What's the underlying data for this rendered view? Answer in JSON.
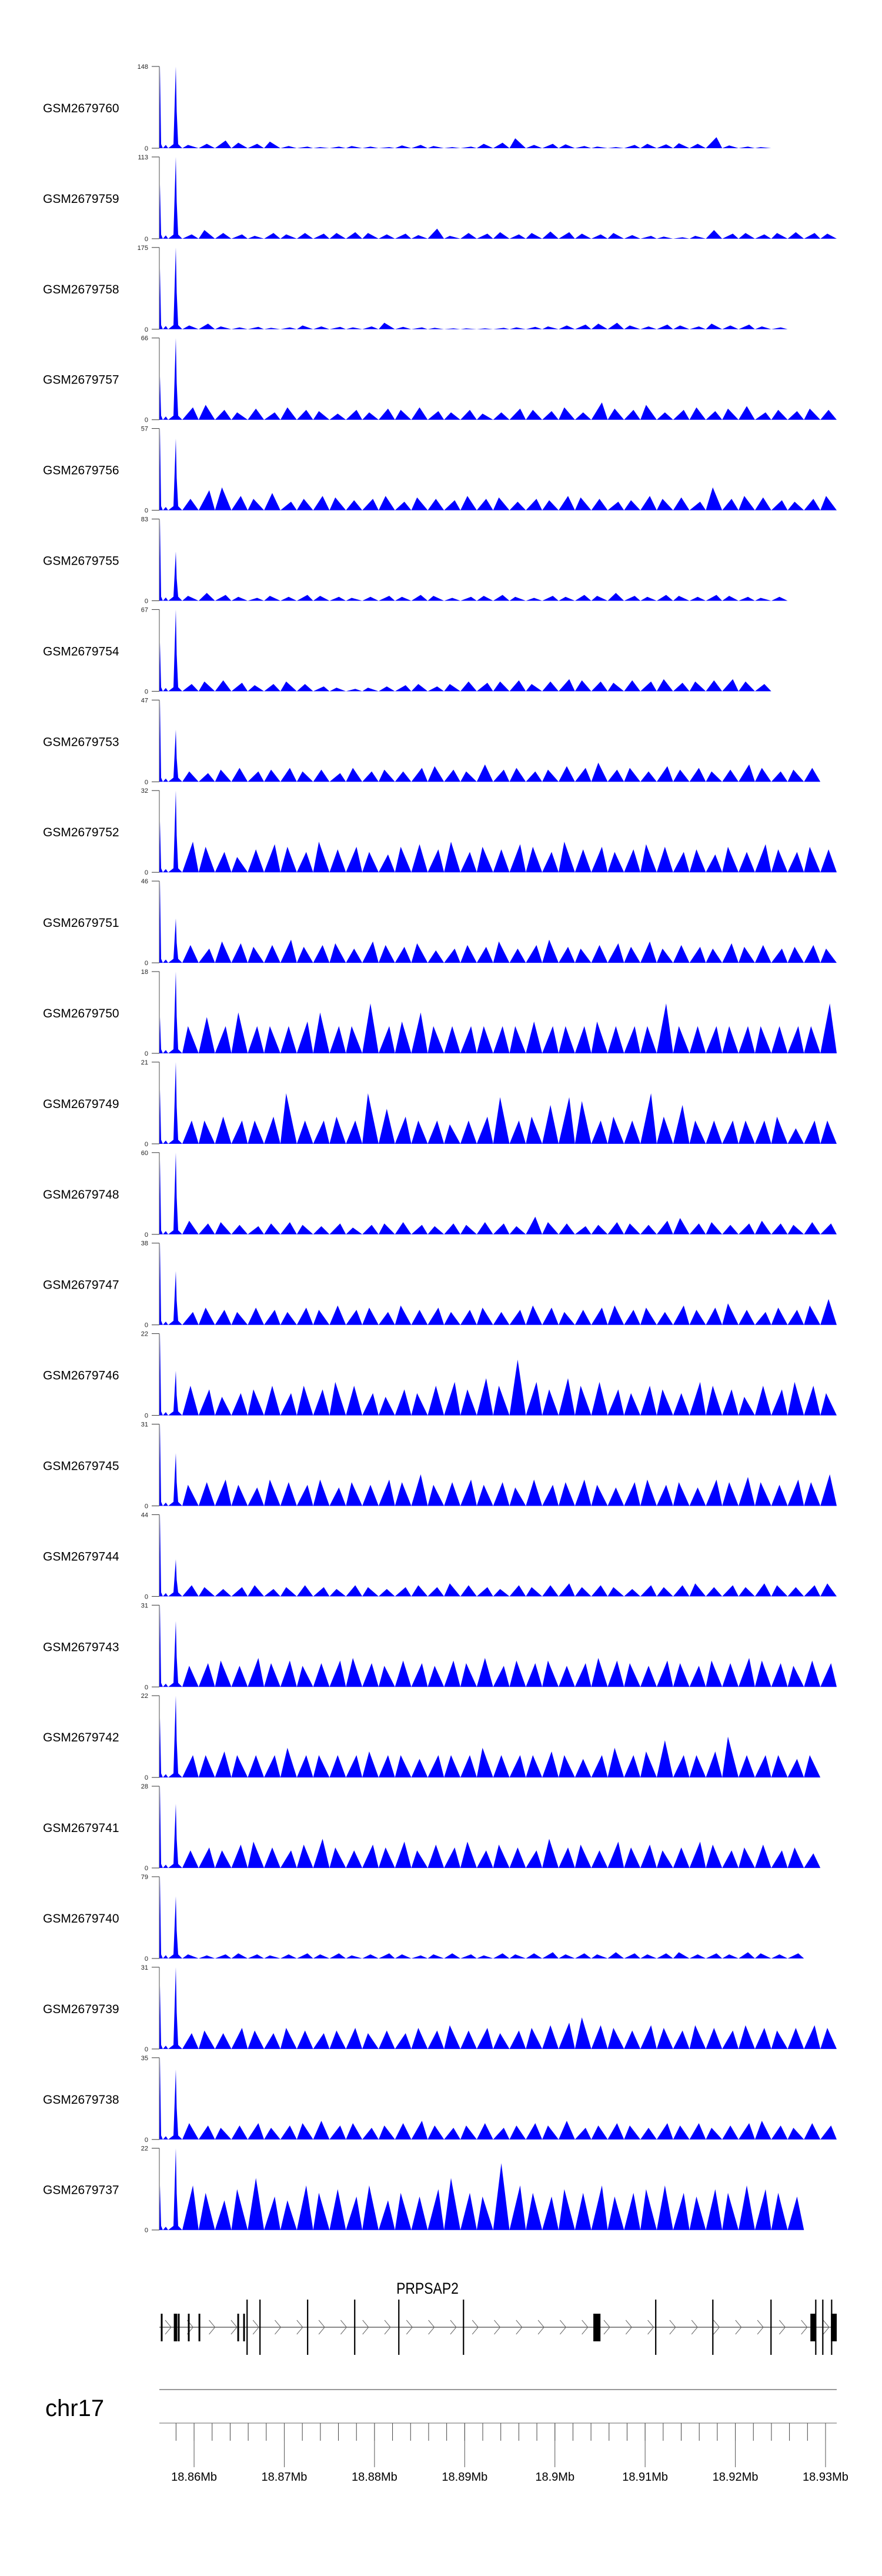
{
  "chart_data": {
    "type": "area",
    "title": "",
    "xlabel": "chr17",
    "xlim_mb": [
      18.85615,
      18.93124
    ],
    "x_ticks": [
      "18.86Mb",
      "18.87Mb",
      "18.88Mb",
      "18.89Mb",
      "18.9Mb",
      "18.91Mb",
      "18.92Mb",
      "18.93Mb"
    ],
    "x_tick_values_mb": [
      18.86,
      18.87,
      18.88,
      18.89,
      18.9,
      18.91,
      18.92,
      18.93
    ],
    "fill_color": "#0000ff",
    "peak_bins": 40,
    "series": [
      {
        "name": "GSM2679760",
        "ymax": 148,
        "start": [
          148,
          148
        ],
        "peaks": [
          6,
          8,
          14,
          10,
          8,
          12,
          4,
          3,
          2,
          3,
          4,
          3,
          2,
          5,
          6,
          4,
          2,
          3,
          8,
          10,
          18,
          6,
          8,
          7,
          4,
          3,
          2,
          6,
          8,
          7,
          9,
          8,
          20,
          5,
          3,
          2,
          0,
          0,
          0,
          0
        ]
      },
      {
        "name": "GSM2679759",
        "ymax": 113,
        "start": [
          75,
          113
        ],
        "peaks": [
          6,
          12,
          8,
          6,
          4,
          8,
          6,
          8,
          7,
          8,
          9,
          8,
          6,
          7,
          5,
          14,
          4,
          8,
          7,
          9,
          6,
          8,
          10,
          9,
          7,
          6,
          8,
          5,
          4,
          3,
          2,
          4,
          12,
          7,
          8,
          6,
          8,
          9,
          8,
          7
        ]
      },
      {
        "name": "GSM2679758",
        "ymax": 175,
        "start": [
          130,
          175
        ],
        "peaks": [
          8,
          12,
          6,
          4,
          5,
          3,
          4,
          8,
          6,
          5,
          4,
          6,
          14,
          5,
          4,
          3,
          2,
          2,
          2,
          3,
          4,
          5,
          6,
          8,
          10,
          12,
          14,
          8,
          6,
          10,
          8,
          6,
          12,
          8,
          10,
          6,
          4,
          0,
          0,
          0
        ]
      },
      {
        "name": "GSM2679757",
        "ymax": 66,
        "start": [
          35,
          66
        ],
        "peaks": [
          10,
          12,
          8,
          6,
          9,
          6,
          10,
          8,
          7,
          5,
          8,
          6,
          9,
          8,
          10,
          7,
          6,
          8,
          5,
          6,
          9,
          8,
          7,
          10,
          6,
          14,
          9,
          8,
          12,
          6,
          8,
          10,
          7,
          9,
          11,
          6,
          8,
          7,
          9,
          8
        ]
      },
      {
        "name": "GSM2679756",
        "ymax": 57,
        "start": [
          57,
          50
        ],
        "peaks": [
          8,
          14,
          16,
          10,
          8,
          12,
          6,
          8,
          10,
          9,
          7,
          8,
          10,
          6,
          9,
          8,
          7,
          10,
          8,
          9,
          6,
          8,
          7,
          10,
          9,
          8,
          6,
          7,
          10,
          8,
          9,
          6,
          16,
          8,
          10,
          9,
          7,
          6,
          8,
          10
        ]
      },
      {
        "name": "GSM2679755",
        "ymax": 83,
        "start": [
          83,
          50
        ],
        "peaks": [
          5,
          8,
          6,
          4,
          3,
          5,
          4,
          6,
          5,
          4,
          3,
          4,
          5,
          4,
          6,
          5,
          3,
          4,
          5,
          6,
          4,
          3,
          5,
          4,
          6,
          5,
          8,
          5,
          4,
          6,
          5,
          4,
          6,
          5,
          4,
          3,
          4,
          0,
          0,
          0
        ]
      },
      {
        "name": "GSM2679754",
        "ymax": 67,
        "start": [
          40,
          67
        ],
        "peaks": [
          6,
          8,
          9,
          7,
          5,
          6,
          8,
          6,
          4,
          3,
          2,
          3,
          4,
          5,
          6,
          4,
          6,
          8,
          7,
          8,
          9,
          6,
          8,
          10,
          9,
          8,
          7,
          9,
          8,
          10,
          7,
          8,
          9,
          10,
          8,
          6,
          0,
          0,
          0,
          0
        ]
      },
      {
        "name": "GSM2679753",
        "ymax": 47,
        "start": [
          47,
          30
        ],
        "peaks": [
          6,
          5,
          7,
          8,
          6,
          7,
          8,
          6,
          7,
          5,
          8,
          6,
          7,
          6,
          8,
          9,
          7,
          6,
          10,
          7,
          8,
          6,
          7,
          9,
          8,
          11,
          7,
          8,
          6,
          9,
          7,
          8,
          6,
          7,
          10,
          8,
          6,
          7,
          8,
          0
        ]
      },
      {
        "name": "GSM2679752",
        "ymax": 32,
        "start": [
          20,
          32
        ],
        "peaks": [
          12,
          10,
          8,
          6,
          9,
          11,
          10,
          8,
          12,
          9,
          10,
          8,
          7,
          10,
          11,
          9,
          12,
          8,
          10,
          9,
          11,
          10,
          8,
          12,
          9,
          10,
          8,
          9,
          11,
          10,
          8,
          9,
          7,
          10,
          8,
          11,
          9,
          8,
          10,
          9
        ]
      },
      {
        "name": "GSM2679751",
        "ymax": 46,
        "start": [
          46,
          25
        ],
        "peaks": [
          10,
          8,
          12,
          11,
          9,
          10,
          13,
          9,
          10,
          11,
          8,
          12,
          10,
          9,
          11,
          7,
          8,
          10,
          9,
          12,
          8,
          10,
          13,
          9,
          8,
          10,
          11,
          9,
          12,
          8,
          10,
          9,
          8,
          11,
          9,
          10,
          8,
          9,
          10,
          8
        ]
      },
      {
        "name": "GSM2679750",
        "ymax": 18,
        "start": [
          8,
          18
        ],
        "peaks": [
          6,
          8,
          6,
          9,
          6,
          6,
          6,
          7,
          9,
          6,
          6,
          11,
          6,
          7,
          9,
          6,
          6,
          6,
          6,
          6,
          6,
          7,
          6,
          6,
          6,
          7,
          6,
          6,
          6,
          11,
          6,
          6,
          6,
          6,
          6,
          6,
          6,
          6,
          6,
          11
        ]
      },
      {
        "name": "GSM2679749",
        "ymax": 21,
        "start": [
          14,
          21
        ],
        "peaks": [
          6,
          6,
          7,
          6,
          6,
          7,
          13,
          6,
          6,
          7,
          6,
          13,
          9,
          7,
          6,
          6,
          5,
          6,
          7,
          12,
          6,
          7,
          10,
          12,
          11,
          6,
          7,
          6,
          13,
          7,
          10,
          6,
          6,
          6,
          6,
          6,
          7,
          4,
          6,
          6
        ]
      },
      {
        "name": "GSM2679748",
        "ymax": 60,
        "start": [
          55,
          60
        ],
        "peaks": [
          10,
          8,
          9,
          7,
          6,
          8,
          9,
          7,
          6,
          8,
          5,
          7,
          8,
          9,
          7,
          6,
          8,
          7,
          9,
          8,
          6,
          13,
          9,
          8,
          6,
          7,
          9,
          8,
          7,
          10,
          12,
          8,
          9,
          7,
          8,
          10,
          8,
          7,
          9,
          8
        ]
      },
      {
        "name": "GSM2679747",
        "ymax": 38,
        "start": [
          38,
          25
        ],
        "peaks": [
          6,
          8,
          7,
          6,
          8,
          7,
          6,
          8,
          7,
          9,
          7,
          8,
          6,
          9,
          7,
          8,
          6,
          7,
          8,
          6,
          7,
          9,
          8,
          6,
          7,
          8,
          9,
          7,
          8,
          6,
          9,
          7,
          8,
          10,
          7,
          6,
          8,
          7,
          9,
          12
        ]
      },
      {
        "name": "GSM2679746",
        "ymax": 22,
        "start": [
          22,
          12
        ],
        "peaks": [
          8,
          7,
          5,
          6,
          7,
          8,
          6,
          8,
          7,
          9,
          8,
          6,
          5,
          7,
          6,
          8,
          9,
          7,
          10,
          8,
          15,
          9,
          7,
          10,
          8,
          9,
          7,
          6,
          8,
          7,
          6,
          9,
          8,
          7,
          5,
          8,
          7,
          9,
          8,
          6
        ]
      },
      {
        "name": "GSM2679745",
        "ymax": 31,
        "start": [
          31,
          20
        ],
        "peaks": [
          8,
          9,
          10,
          8,
          7,
          10,
          9,
          8,
          10,
          7,
          9,
          8,
          10,
          9,
          12,
          8,
          9,
          10,
          8,
          9,
          7,
          10,
          8,
          9,
          10,
          8,
          7,
          9,
          10,
          8,
          9,
          7,
          10,
          9,
          11,
          9,
          8,
          10,
          9,
          12
        ]
      },
      {
        "name": "GSM2679744",
        "ymax": 44,
        "start": [
          44,
          20
        ],
        "peaks": [
          6,
          5,
          4,
          5,
          6,
          4,
          5,
          6,
          5,
          4,
          6,
          5,
          4,
          5,
          6,
          5,
          7,
          6,
          5,
          4,
          6,
          5,
          6,
          7,
          5,
          6,
          5,
          4,
          6,
          5,
          6,
          7,
          5,
          6,
          5,
          7,
          6,
          5,
          6,
          7
        ]
      },
      {
        "name": "GSM2679743",
        "ymax": 31,
        "start": [
          31,
          25
        ],
        "peaks": [
          8,
          9,
          10,
          8,
          11,
          9,
          10,
          8,
          9,
          10,
          11,
          9,
          8,
          10,
          9,
          8,
          10,
          9,
          11,
          8,
          10,
          9,
          10,
          8,
          9,
          11,
          10,
          9,
          8,
          10,
          9,
          8,
          10,
          9,
          11,
          10,
          9,
          8,
          10,
          9
        ]
      },
      {
        "name": "GSM2679742",
        "ymax": 22,
        "start": [
          16,
          22
        ],
        "peaks": [
          6,
          6,
          7,
          6,
          6,
          6,
          8,
          6,
          6,
          6,
          6,
          7,
          6,
          6,
          5,
          6,
          6,
          6,
          8,
          6,
          6,
          6,
          7,
          6,
          5,
          6,
          8,
          6,
          7,
          10,
          6,
          6,
          7,
          11,
          6,
          6,
          6,
          5,
          6,
          0
        ]
      },
      {
        "name": "GSM2679741",
        "ymax": 28,
        "start": [
          28,
          22
        ],
        "peaks": [
          6,
          7,
          6,
          8,
          9,
          7,
          6,
          8,
          10,
          7,
          6,
          8,
          7,
          9,
          6,
          8,
          7,
          9,
          6,
          8,
          7,
          6,
          10,
          7,
          8,
          6,
          9,
          7,
          8,
          6,
          7,
          9,
          8,
          6,
          7,
          8,
          6,
          7,
          5,
          0
        ]
      },
      {
        "name": "GSM2679740",
        "ymax": 79,
        "start": [
          79,
          60
        ],
        "peaks": [
          4,
          3,
          4,
          5,
          4,
          3,
          4,
          5,
          4,
          5,
          3,
          4,
          5,
          4,
          3,
          4,
          5,
          4,
          3,
          5,
          4,
          5,
          6,
          4,
          5,
          4,
          6,
          5,
          4,
          5,
          6,
          4,
          5,
          4,
          6,
          5,
          4,
          5,
          0,
          0
        ]
      },
      {
        "name": "GSM2679739",
        "ymax": 31,
        "start": [
          24,
          31
        ],
        "peaks": [
          6,
          7,
          6,
          8,
          7,
          6,
          8,
          7,
          6,
          7,
          8,
          6,
          7,
          6,
          8,
          7,
          9,
          7,
          8,
          6,
          7,
          8,
          9,
          10,
          12,
          9,
          8,
          7,
          9,
          8,
          7,
          9,
          8,
          7,
          9,
          8,
          7,
          8,
          9,
          8
        ]
      },
      {
        "name": "GSM2679738",
        "ymax": 35,
        "start": [
          35,
          30
        ],
        "peaks": [
          7,
          6,
          5,
          6,
          7,
          5,
          6,
          7,
          8,
          6,
          7,
          5,
          6,
          7,
          8,
          6,
          5,
          6,
          7,
          5,
          6,
          7,
          6,
          8,
          5,
          6,
          7,
          6,
          5,
          7,
          6,
          7,
          5,
          6,
          7,
          8,
          6,
          5,
          7,
          6
        ]
      },
      {
        "name": "GSM2679737",
        "ymax": 22,
        "start": [
          12,
          22
        ],
        "peaks": [
          12,
          10,
          8,
          11,
          14,
          9,
          8,
          12,
          10,
          11,
          9,
          12,
          8,
          10,
          9,
          11,
          14,
          10,
          9,
          18,
          12,
          10,
          9,
          11,
          10,
          12,
          9,
          10,
          11,
          12,
          10,
          9,
          11,
          10,
          12,
          11,
          10,
          9,
          0,
          0
        ]
      }
    ]
  },
  "gene_track": {
    "gene_name": "PRPSAP2",
    "strand": "+",
    "exons": [
      {
        "start": 18.85641,
        "end": 18.85641,
        "type": "small"
      },
      {
        "start": 18.85785,
        "end": 18.85785,
        "type": "small"
      },
      {
        "start": 18.85804,
        "end": 18.85804,
        "type": "small"
      },
      {
        "start": 18.8583,
        "end": 18.8583,
        "type": "small"
      },
      {
        "start": 18.85941,
        "end": 18.85941,
        "type": "small"
      },
      {
        "start": 18.86059,
        "end": 18.86059,
        "type": "small"
      },
      {
        "start": 18.86489,
        "end": 18.86489,
        "type": "small"
      },
      {
        "start": 18.86554,
        "end": 18.86554,
        "type": "small"
      },
      {
        "start": 18.86587,
        "end": 18.86587,
        "type": "tall"
      },
      {
        "start": 18.8673,
        "end": 18.8673,
        "type": "tall"
      },
      {
        "start": 18.87258,
        "end": 18.87258,
        "type": "tall"
      },
      {
        "start": 18.8778,
        "end": 18.8778,
        "type": "tall"
      },
      {
        "start": 18.88269,
        "end": 18.88269,
        "type": "tall"
      },
      {
        "start": 18.88986,
        "end": 18.88986,
        "type": "tall"
      },
      {
        "start": 18.90426,
        "end": 18.90505,
        "type": "block"
      },
      {
        "start": 18.91117,
        "end": 18.91117,
        "type": "tall"
      },
      {
        "start": 18.9175,
        "end": 18.9175,
        "type": "tall"
      },
      {
        "start": 18.92395,
        "end": 18.92395,
        "type": "tall"
      },
      {
        "start": 18.92832,
        "end": 18.92891,
        "type": "block"
      },
      {
        "start": 18.92891,
        "end": 18.92891,
        "type": "tall"
      },
      {
        "start": 18.92969,
        "end": 18.92969,
        "type": "tall"
      },
      {
        "start": 18.93067,
        "end": 18.93067,
        "type": "tall"
      },
      {
        "start": 18.9306,
        "end": 18.93124,
        "type": "block"
      }
    ]
  },
  "axis": {
    "chromosome": "chr17"
  }
}
